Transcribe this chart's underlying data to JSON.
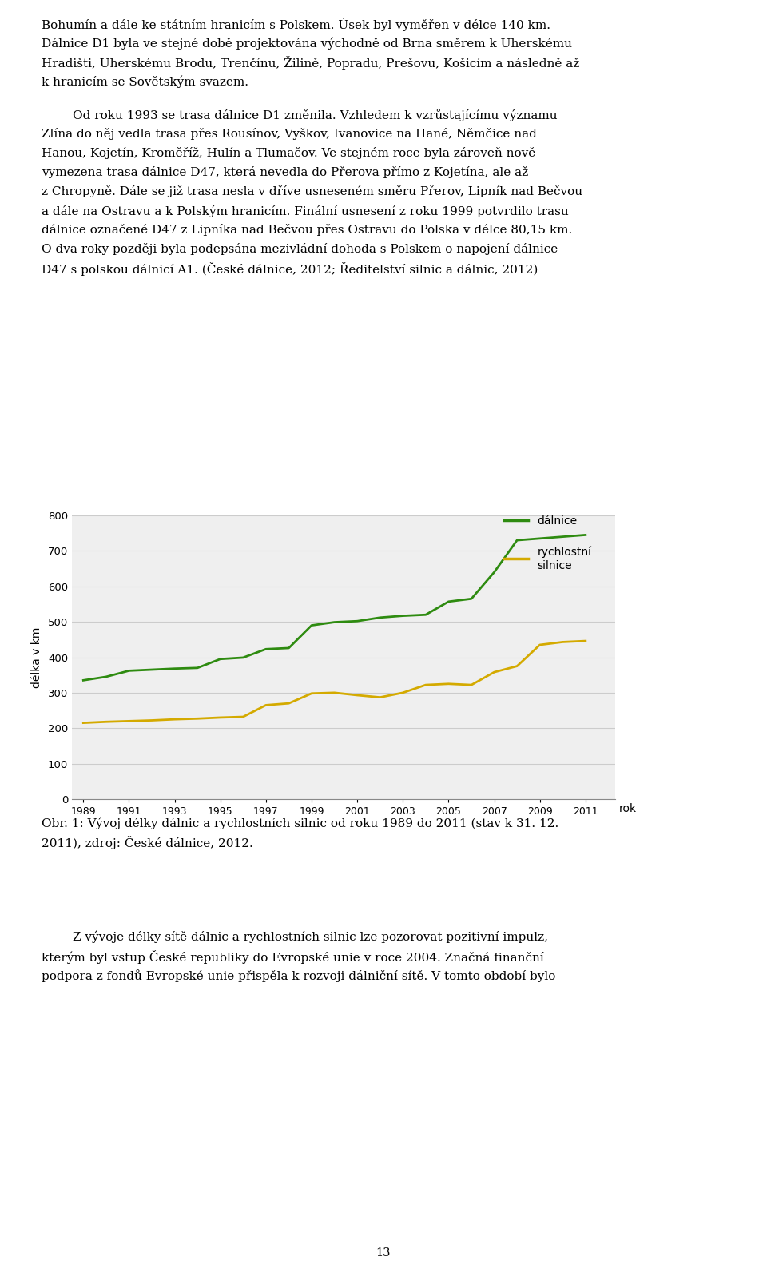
{
  "years": [
    1989,
    1990,
    1991,
    1992,
    1993,
    1994,
    1995,
    1996,
    1997,
    1998,
    1999,
    2000,
    2001,
    2002,
    2003,
    2004,
    2005,
    2006,
    2007,
    2008,
    2009,
    2010,
    2011
  ],
  "dalnice": [
    335,
    345,
    362,
    365,
    368,
    370,
    395,
    399,
    423,
    426,
    490,
    499,
    502,
    512,
    517,
    520,
    557,
    565,
    640,
    730,
    735,
    740,
    745
  ],
  "rychlostni": [
    215,
    218,
    220,
    222,
    225,
    227,
    230,
    232,
    265,
    270,
    298,
    300,
    293,
    287,
    300,
    322,
    325,
    322,
    358,
    375,
    435,
    443,
    446
  ],
  "xtick_years": [
    1989,
    1991,
    1993,
    1995,
    1997,
    1999,
    2001,
    2003,
    2005,
    2007,
    2009,
    2011
  ],
  "dalnice_color": "#2e8b10",
  "rychlostni_color": "#d4aa00",
  "ylabel": "délka v km",
  "xlabel": "rok",
  "ylim": [
    0,
    800
  ],
  "yticks": [
    0,
    100,
    200,
    300,
    400,
    500,
    600,
    700,
    800
  ],
  "legend_dalnice": "dálnice",
  "legend_rychlostni": "rychlostní\nsilnice",
  "background_color": "#ffffff",
  "grid_color": "#cccccc",
  "chart_bg": "#efefef",
  "line_width": 2.0,
  "page_num": "13",
  "body_fontsize": 11.0,
  "caption_fontsize": 11.0
}
